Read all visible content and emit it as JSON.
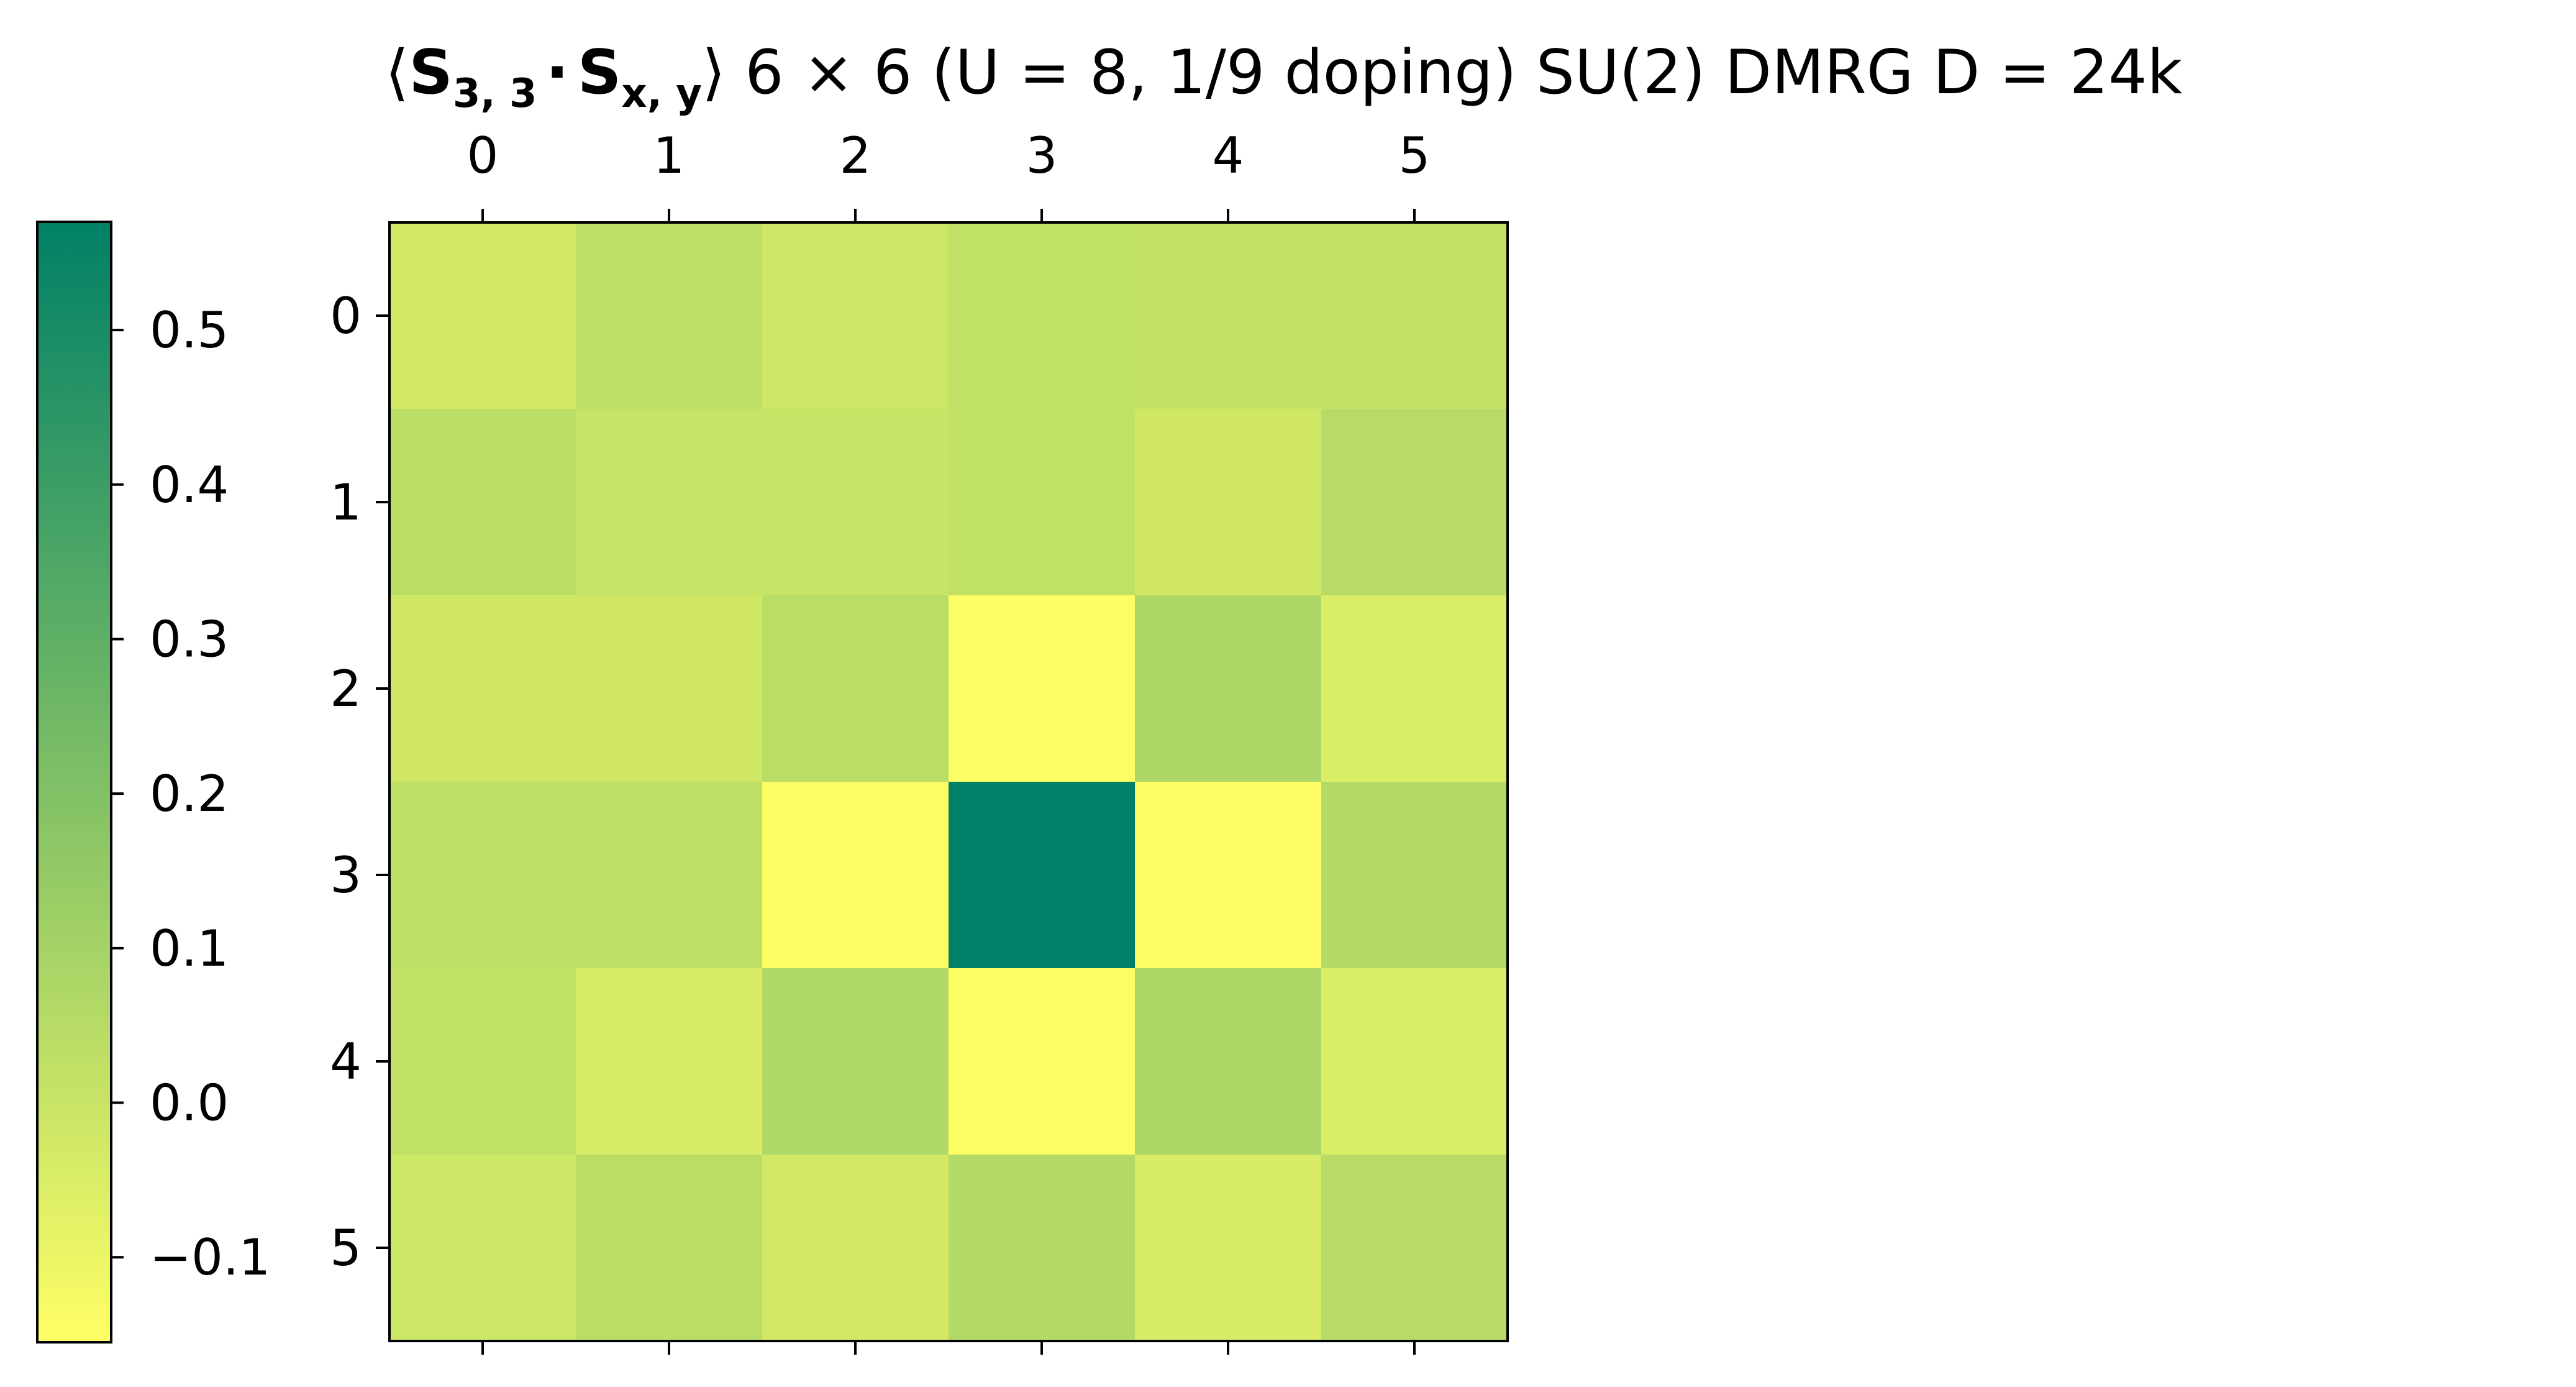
{
  "chart_data": {
    "type": "heatmap",
    "title": {
      "bracket_open": "⟨",
      "op1": "S",
      "op1_sub": "3, 3",
      "dot": "·",
      "op2": "S",
      "op2_sub": "x, y",
      "bracket_close": "⟩",
      "rest": " 6 × 6 (U = 8, 1/9 doping) SU(2) DMRG D = 24k"
    },
    "x_ticks": [
      "0",
      "1",
      "2",
      "3",
      "4",
      "5"
    ],
    "y_ticks": [
      "0",
      "1",
      "2",
      "3",
      "4",
      "5"
    ],
    "values": [
      [
        -0.03,
        0.03,
        -0.01,
        0.02,
        0.01,
        0.01
      ],
      [
        0.04,
        0.0,
        0.0,
        0.02,
        -0.02,
        0.05
      ],
      [
        -0.02,
        -0.02,
        0.04,
        -0.15,
        0.08,
        -0.05
      ],
      [
        0.03,
        0.03,
        -0.15,
        0.57,
        -0.15,
        0.06
      ],
      [
        0.02,
        -0.04,
        0.07,
        -0.15,
        0.08,
        -0.05
      ],
      [
        -0.01,
        0.04,
        -0.03,
        0.06,
        -0.04,
        0.05
      ]
    ],
    "colorbar": {
      "colormap": "summer_r",
      "vmin": -0.155,
      "vmax": 0.57,
      "ticks": [
        "0.5",
        "0.4",
        "0.3",
        "0.2",
        "0.1",
        "0.0",
        "−0.1"
      ],
      "tick_values": [
        0.5,
        0.4,
        0.3,
        0.2,
        0.1,
        0.0,
        -0.1
      ],
      "color_low": "#ffff66",
      "color_high": "#008066"
    }
  }
}
